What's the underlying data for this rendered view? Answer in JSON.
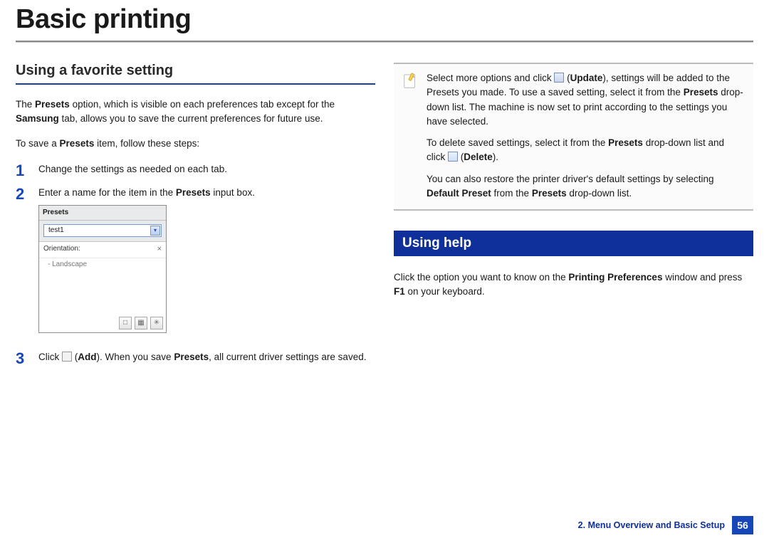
{
  "colors": {
    "accent_blue": "#1646b8",
    "dark_blue_bar": "#0f2f9a",
    "rule_gray": "#888888",
    "note_border": "#bcbcbc",
    "text": "#1a1a1a"
  },
  "page": {
    "title": "Basic printing",
    "footer_chapter": "2.  Menu Overview and Basic Setup",
    "page_number": "56"
  },
  "left": {
    "section_heading": "Using a favorite setting",
    "intro_html": "The <b>Presets</b> option, which is visible on each preferences tab except for the <b>Samsung</b> tab, allows you to save the current preferences for future use.",
    "lead_html": "To save a <b>Presets</b> item, follow these steps:",
    "steps": {
      "s1": {
        "num": "1",
        "text_html": "Change the settings as needed on each tab."
      },
      "s2": {
        "num": "2",
        "text_html": "Enter a name for the item in the <b>Presets</b> input box."
      },
      "s3": {
        "num": "3",
        "text_html": "Click <span class=\"inline-icon\"></span> (<b>Add</b>). When you save <b>Presets</b>, all current driver settings are saved."
      }
    },
    "presets_figure": {
      "panel_title": "Presets",
      "combo_value": "test1",
      "row1_label": "Orientation:",
      "row1_close": "×",
      "row1_sub": "- Landscape",
      "buttons": [
        "□",
        "▦",
        "✳"
      ]
    }
  },
  "right": {
    "note": {
      "p1_html": "Select more options and click <span class=\"inline-icon floppy\"></span> (<b>Update</b>), settings will be added to the Presets you made. To use a saved setting, select it from the <b>Presets</b> drop-down list. The machine is now set to print according to the settings you have selected.",
      "p2_html": "To delete saved settings, select it from the <b>Presets</b> drop-down list and click <span class=\"inline-icon del\"></span> (<b>Delete</b>).",
      "p3_html": "You can also restore the printer driver's default settings by selecting <b>Default Preset</b> from the <b>Presets</b> drop-down list."
    },
    "section2_heading": "Using help",
    "section2_body_html": "Click the option you want to know on the <b>Printing Preferences</b> window and press <b>F1</b> on your keyboard."
  }
}
